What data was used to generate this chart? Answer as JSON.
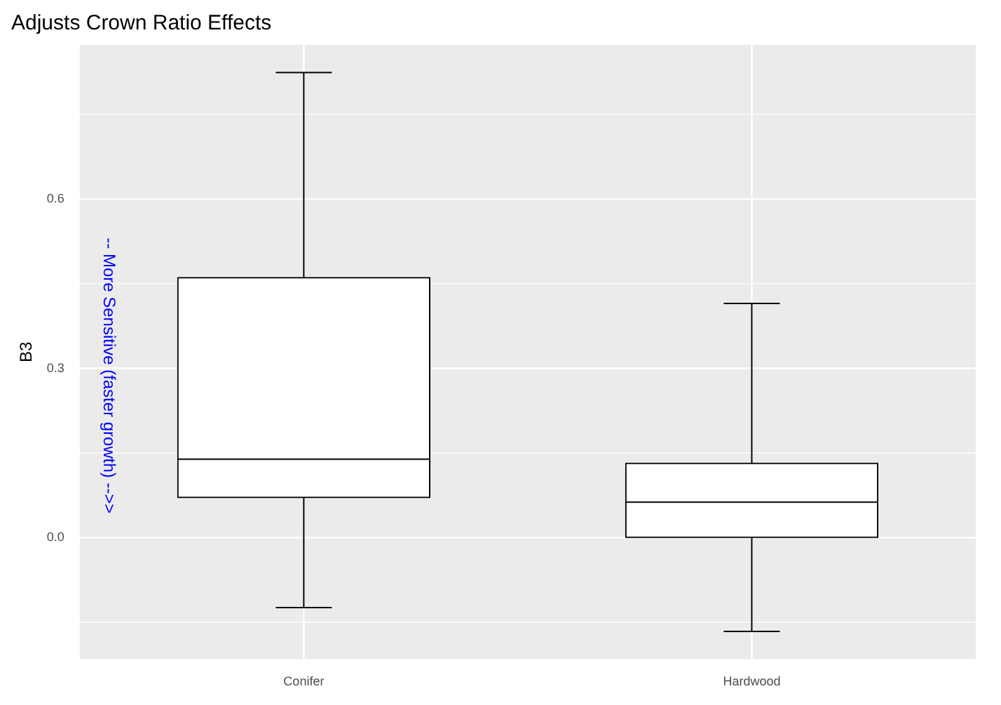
{
  "chart_data": {
    "type": "box",
    "title": "Adjusts Crown Ratio Effects",
    "ylabel": "B3",
    "categories": [
      "Conifer",
      "Hardwood"
    ],
    "boxes": [
      {
        "low": -0.124,
        "q1": 0.071,
        "median": 0.139,
        "q3": 0.461,
        "high": 0.824
      },
      {
        "low": -0.166,
        "q1": 0.0,
        "median": 0.063,
        "q3": 0.132,
        "high": 0.415
      }
    ],
    "ylim": [
      -0.215,
      0.873
    ],
    "yticks": [
      {
        "value": 0,
        "label": "0.0"
      },
      {
        "value": 0.3,
        "label": "0.3"
      },
      {
        "value": 0.6,
        "label": "0.6"
      }
    ],
    "grid": true,
    "annotations": [
      "-- More Sensitive (faster growth) -->>"
    ]
  }
}
